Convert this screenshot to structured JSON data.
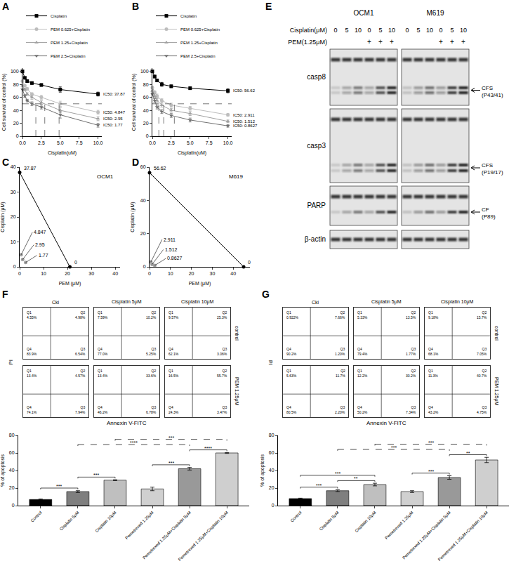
{
  "chart_data": [
    {
      "panel": "A",
      "type": "line",
      "x_label": "Cisplatin(uM)",
      "y_label": "Cell survival of control (%)",
      "x": [
        0,
        0.3125,
        0.625,
        1.25,
        2.5,
        5,
        10
      ],
      "xlim": [
        0,
        10.5
      ],
      "xticks": [
        {
          "value": 0,
          "label": "0.0"
        },
        2.5,
        {
          "value": 5,
          "label": "5.0"
        },
        7.5,
        {
          "value": 10,
          "label": "10.0"
        }
      ],
      "ylim": [
        0,
        105
      ],
      "yticks": [
        0,
        20,
        40,
        60,
        80,
        100
      ],
      "grid": false,
      "legend": "top",
      "threshold": 50,
      "series": [
        {
          "name": "Cisplatin",
          "color": "#000000",
          "marker": "square",
          "values": [
            100,
            90,
            85,
            82,
            79,
            72,
            65
          ],
          "errors": [
            0,
            1.5,
            1.5,
            2,
            2,
            4,
            3
          ],
          "ic50": 37.87,
          "ic50_label": "IC50: 37.87"
        },
        {
          "name": "PEM 0.625+Cisplatin",
          "color": "#bdbdbd",
          "marker": "circle",
          "values": [
            85,
            78,
            73,
            65,
            60,
            50,
            37
          ],
          "errors": [
            1,
            2,
            2,
            2,
            3,
            4,
            3
          ],
          "ic50": 4.847,
          "ic50_label": "IC50: 4.847"
        },
        {
          "name": "PEM 1.25+Cisplatin",
          "color": "#a0a0a0",
          "marker": "triangle-up",
          "values": [
            78,
            72,
            65,
            60,
            52,
            40,
            27
          ],
          "errors": [
            1,
            2,
            2,
            3,
            3,
            4,
            3
          ],
          "ic50": 2.95,
          "ic50_label": "IC50: 2.95"
        },
        {
          "name": "PEM 2.5+Cisplatin",
          "color": "#707070",
          "marker": "triangle-down",
          "values": [
            72,
            62,
            55,
            50,
            45,
            33,
            17
          ],
          "errors": [
            1,
            2,
            2,
            3,
            3,
            5,
            3
          ],
          "ic50": 1.77,
          "ic50_label": "IC50: 1.77"
        }
      ]
    },
    {
      "panel": "B",
      "type": "line",
      "x_label": "Cisplatin(uM)",
      "y_label": "Cell survival of control (%)",
      "x": [
        0,
        0.3125,
        0.625,
        1.25,
        2.5,
        5,
        10
      ],
      "xlim": [
        0,
        10.5
      ],
      "xticks": [
        {
          "value": 0,
          "label": "0.0"
        },
        2.5,
        {
          "value": 5,
          "label": "5.0"
        },
        7.5,
        {
          "value": 10,
          "label": "10.0"
        }
      ],
      "ylim": [
        0,
        105
      ],
      "yticks": [
        0,
        20,
        40,
        60,
        80,
        100
      ],
      "grid": false,
      "legend": "top",
      "threshold": 50,
      "series": [
        {
          "name": "Cisplatin",
          "color": "#000000",
          "marker": "square",
          "values": [
            100,
            92,
            86,
            80,
            77,
            74,
            70
          ],
          "errors": [
            0,
            2,
            2,
            3,
            2,
            2,
            3
          ],
          "ic50": 56.62,
          "ic50_label": "IC50: 56.62"
        },
        {
          "name": "PEM 0.625+Cisplatin",
          "color": "#bdbdbd",
          "marker": "circle",
          "values": [
            75,
            68,
            62,
            55,
            48,
            43,
            33
          ],
          "errors": [
            2,
            2,
            3,
            3,
            3,
            3,
            2
          ],
          "ic50": 2.911,
          "ic50_label": "IC50: 2.911"
        },
        {
          "name": "PEM 1.25+Cisplatin",
          "color": "#a0a0a0",
          "marker": "triangle-up",
          "values": [
            70,
            62,
            55,
            48,
            40,
            35,
            23
          ],
          "errors": [
            2,
            3,
            3,
            3,
            3,
            3,
            2
          ],
          "ic50": 1.512,
          "ic50_label": "IC50: 1.512"
        },
        {
          "name": "PEM 2.5+Cisplatin",
          "color": "#707070",
          "marker": "triangle-down",
          "values": [
            65,
            55,
            45,
            38,
            32,
            25,
            16
          ],
          "errors": [
            2,
            3,
            3,
            3,
            3,
            3,
            2
          ],
          "ic50": 0.8627,
          "ic50_label": "IC50: 0.8627"
        }
      ]
    },
    {
      "panel": "C",
      "type": "line",
      "title": "OCM1",
      "x_label": "PEM (μM)",
      "y_label": "Cisplatin (μM)",
      "xlim": [
        0,
        42
      ],
      "xticks": [
        0,
        10,
        20,
        30,
        40
      ],
      "ylim": [
        0,
        40
      ],
      "yticks": [
        0,
        10,
        20,
        30,
        40
      ],
      "grid": false,
      "data_labels": true,
      "series": [
        {
          "type": "line",
          "color": "#000000",
          "marker": "circle",
          "x": [
            0,
            21
          ],
          "values": [
            37.87,
            0
          ]
        },
        {
          "type": "scatter",
          "color": "#9e9e9e",
          "marker": "circle",
          "x": [
            0.625,
            1.25,
            2.5
          ],
          "values": [
            4.847,
            2.95,
            1.77
          ]
        }
      ]
    },
    {
      "panel": "D",
      "type": "line",
      "title": "M619",
      "x_label": "PEM (μM)",
      "y_label": "Cisplatin (μM)",
      "xlim": [
        0,
        48
      ],
      "xticks": [
        0,
        10,
        20,
        30,
        40
      ],
      "ylim": [
        0,
        60
      ],
      "yticks": [
        0,
        20,
        40,
        60
      ],
      "grid": false,
      "data_labels": true,
      "series": [
        {
          "type": "line",
          "color": "#000000",
          "marker": "circle",
          "x": [
            0,
            45
          ],
          "values": [
            56.62,
            0
          ]
        },
        {
          "type": "scatter",
          "color": "#9e9e9e",
          "marker": "circle",
          "x": [
            0.625,
            1.25,
            2.5
          ],
          "values": [
            2.911,
            1.512,
            0.8627
          ]
        }
      ]
    },
    {
      "type": "bar",
      "y_label": "% of apoptosis",
      "categories": [
        "Control",
        "Cisplatin 5μM",
        "Cisplatin 10μM",
        "Pemetrexed 1.25μM",
        "Pemetrexed 1.25μM+Cisplatin 5μM",
        "Pemetrexed 1.25μM+Cisplatin 10μM"
      ],
      "values": [
        7,
        16,
        29,
        19,
        42,
        60
      ],
      "errors": [
        0.5,
        1,
        0.5,
        2,
        1.5,
        0.5
      ],
      "colors": [
        "#000000",
        "#7f7f7f",
        "#bfbfbf",
        "#d0d0d0",
        "#999999",
        "#cfcfcf"
      ],
      "ylim": [
        0,
        80
      ],
      "yticks": [
        0,
        20,
        40,
        60,
        80
      ],
      "grid": false,
      "significance": [
        {
          "from": 0,
          "to": 1,
          "label": "***"
        },
        {
          "from": 1,
          "to": 2,
          "label": "***"
        },
        {
          "from": 3,
          "to": 4,
          "label": "***"
        },
        {
          "from": 4,
          "to": 5,
          "label": "****"
        },
        {
          "from": 1,
          "to": 4,
          "label": "****",
          "line_style": "dashed"
        },
        {
          "from": 2,
          "to": 5,
          "label": "***",
          "line_style": "dashed"
        }
      ]
    },
    {
      "type": "bar",
      "y_label": "% of apoptosis",
      "categories": [
        "Control",
        "Cisplatin 5μM",
        "Cisplatin 10μM",
        "Pemetrexed 1.25μM",
        "Pemetrexed 1.25μM+Cisplatin 5μM",
        "Pemetrexed 1.25μM+Cisplatin 10μM"
      ],
      "values": [
        8,
        17,
        24,
        16,
        32,
        52
      ],
      "errors": [
        0.5,
        1,
        1.5,
        1,
        2,
        3
      ],
      "colors": [
        "#000000",
        "#7f7f7f",
        "#bfbfbf",
        "#d0d0d0",
        "#999999",
        "#cfcfcf"
      ],
      "ylim": [
        0,
        80
      ],
      "yticks": [
        0,
        20,
        40,
        60,
        80
      ],
      "grid": false,
      "significance": [
        {
          "from": 0,
          "to": 1,
          "label": "***"
        },
        {
          "from": 1,
          "to": 2,
          "label": "**"
        },
        {
          "from": 0,
          "to": 2,
          "label": "***"
        },
        {
          "from": 3,
          "to": 4,
          "label": "***"
        },
        {
          "from": 4,
          "to": 5,
          "label": "**"
        },
        {
          "from": 1,
          "to": 4,
          "label": "***",
          "line_style": "dashed"
        },
        {
          "from": 2,
          "to": 5,
          "label": "***",
          "line_style": "dashed"
        }
      ]
    }
  ],
  "blot": {
    "panel": "E",
    "treatments": [
      "Cisplatin(μM)",
      "PEM(1.25μM)"
    ],
    "groups": [
      {
        "name": "OCM1",
        "cisplatin": [
          0,
          5,
          10,
          0,
          5,
          10
        ],
        "pem": [
          null,
          null,
          null,
          "+",
          "+",
          "+"
        ]
      },
      {
        "name": "M619",
        "cisplatin": [
          0,
          5,
          10,
          0,
          5,
          10
        ],
        "pem": [
          null,
          null,
          null,
          "+",
          "+",
          "+"
        ]
      }
    ],
    "rows": [
      {
        "label": "casp8",
        "cleaved": {
          "label": "CFS",
          "sub": "(P43/41)"
        }
      },
      {
        "label": "casp3",
        "cleaved": {
          "label": "CFS",
          "sub": "(P19/17)"
        }
      },
      {
        "label": "PARP",
        "cleaved": {
          "label": "CF",
          "sub": "(P89)"
        }
      },
      {
        "label": "β-actin"
      }
    ]
  },
  "flow": [
    {
      "panel": "F",
      "x_label": "Annexin V-FITC",
      "y_label": "PI",
      "tick_labels": false,
      "columns": [
        "Cki",
        "Cisplatin 5μM",
        "Cisplatin 10μM"
      ],
      "rows": [
        "control",
        "PEM 1.25μM"
      ],
      "quadrants": [
        "Q1",
        "Q2",
        "Q3",
        "Q4"
      ],
      "cells": [
        [
          {
            "values": [
              4.55,
              4.98,
              6.54,
              83.9
            ],
            "value_labels": [
              "4.55%",
              "4.98%",
              "6.54%",
              "83.9%"
            ]
          },
          {
            "values": [
              7.59,
              10.2,
              5.25,
              77.0
            ],
            "value_labels": [
              "7.59%",
              "10.2%",
              "5.25%",
              "77.0%"
            ]
          },
          {
            "values": [
              9.57,
              25.3,
              3.06,
              62.1
            ],
            "value_labels": [
              "9.57%",
              "25.3%",
              "3.06%",
              "62.1%"
            ]
          }
        ],
        [
          {
            "values": [
              13.4,
              4.57,
              7.94,
              74.1
            ],
            "value_labels": [
              "13.4%",
              "4.57%",
              "7.94%",
              "74.1%"
            ]
          },
          {
            "values": [
              13.4,
              33.6,
              6.78,
              46.2
            ],
            "value_labels": [
              "13.4%",
              "33.6%",
              "6.78%",
              "46.2%"
            ]
          },
          {
            "values": [
              16.5,
              55.7,
              3.47,
              24.3
            ],
            "value_labels": [
              "16.5%",
              "55.7%",
              "3.47%",
              "24.3%"
            ]
          }
        ]
      ]
    },
    {
      "panel": "G",
      "x_label": "Annexin V-FITC",
      "y_label": "Id",
      "tick_labels": false,
      "columns": [
        "Cki",
        "Cisplatin 5μM",
        "Cisplatin 10μM"
      ],
      "rows": [
        "control",
        "PEM 1.25μM"
      ],
      "quadrants": [
        "Q1",
        "Q2",
        "Q3",
        "Q4"
      ],
      "cells": [
        [
          {
            "values": [
              0.922,
              7.66,
              1.2,
              90.2
            ],
            "value_labels": [
              "0.922%",
              "7.66%",
              "1.20%",
              "90.2%"
            ]
          },
          {
            "values": [
              5.33,
              13.5,
              1.77,
              79.4
            ],
            "value_labels": [
              "5.33%",
              "13.5%",
              "1.77%",
              "79.4%"
            ]
          },
          {
            "values": [
              9.18,
              15.7,
              7.05,
              68.1
            ],
            "value_labels": [
              "9.18%",
              "15.7%",
              "7.05%",
              "68.1%"
            ]
          }
        ],
        [
          {
            "values": [
              5.63,
              11.7,
              2.2,
              80.5
            ],
            "value_labels": [
              "5.63%",
              "11.7%",
              "2.20%",
              "80.5%"
            ]
          },
          {
            "values": [
              12.2,
              30.2,
              7.34,
              50.2
            ],
            "value_labels": [
              "12.2%",
              "30.2%",
              "7.34%",
              "50.2%"
            ]
          },
          {
            "values": [
              11.3,
              40.7,
              4.75,
              43.2
            ],
            "value_labels": [
              "11.3%",
              "40.7%",
              "4.75%",
              "43.2%"
            ]
          }
        ]
      ]
    }
  ]
}
